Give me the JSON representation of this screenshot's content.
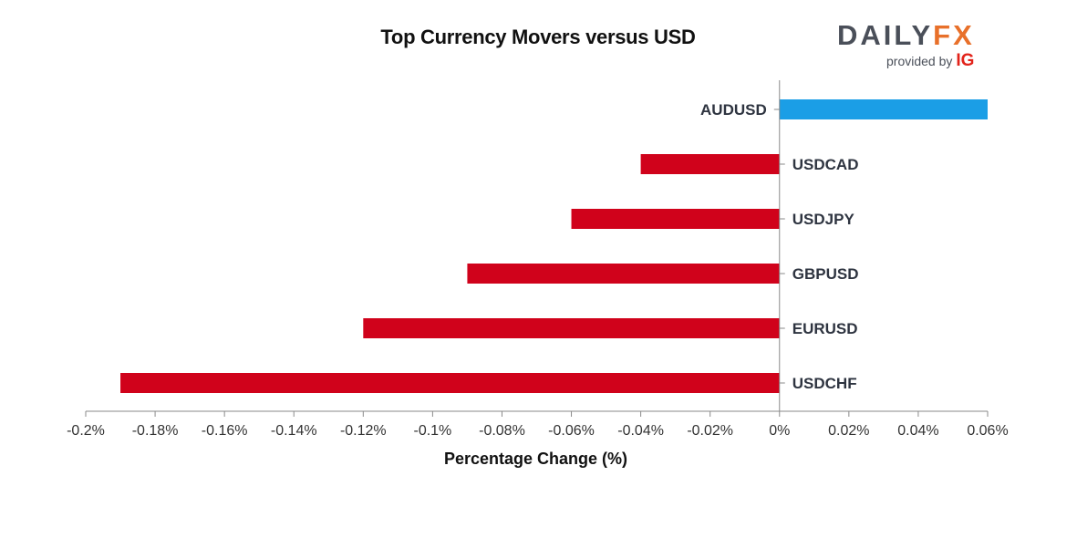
{
  "brand": {
    "name_main": "DAILY",
    "name_fx": "FX",
    "provided_by": "provided by",
    "ig": "IG",
    "colors": {
      "daily": "#4a4f59",
      "fx": "#e8702a",
      "ig": "#e2231a"
    }
  },
  "chart_data": {
    "type": "bar",
    "orientation": "horizontal",
    "title": "Top Currency Movers versus USD",
    "xlabel": "Percentage Change (%)",
    "ylabel": "",
    "categories": [
      "AUDUSD",
      "USDCAD",
      "USDJPY",
      "GBPUSD",
      "EURUSD",
      "USDCHF"
    ],
    "values": [
      0.06,
      -0.04,
      -0.06,
      -0.09,
      -0.12,
      -0.19
    ],
    "xlim": [
      -0.2,
      0.06
    ],
    "x_ticks": [
      -0.2,
      -0.18,
      -0.16,
      -0.14,
      -0.12,
      -0.1,
      -0.08,
      -0.06,
      -0.04,
      -0.02,
      0,
      0.02,
      0.04,
      0.06
    ],
    "x_tick_labels": [
      "-0.2%",
      "-0.18%",
      "-0.16%",
      "-0.14%",
      "-0.12%",
      "-0.1%",
      "-0.08%",
      "-0.06%",
      "-0.04%",
      "-0.02%",
      "0%",
      "0.02%",
      "0.04%",
      "0.06%"
    ],
    "colors": {
      "positive": "#1b9ee6",
      "negative": "#d0021b"
    },
    "grid": false,
    "legend": "none"
  }
}
